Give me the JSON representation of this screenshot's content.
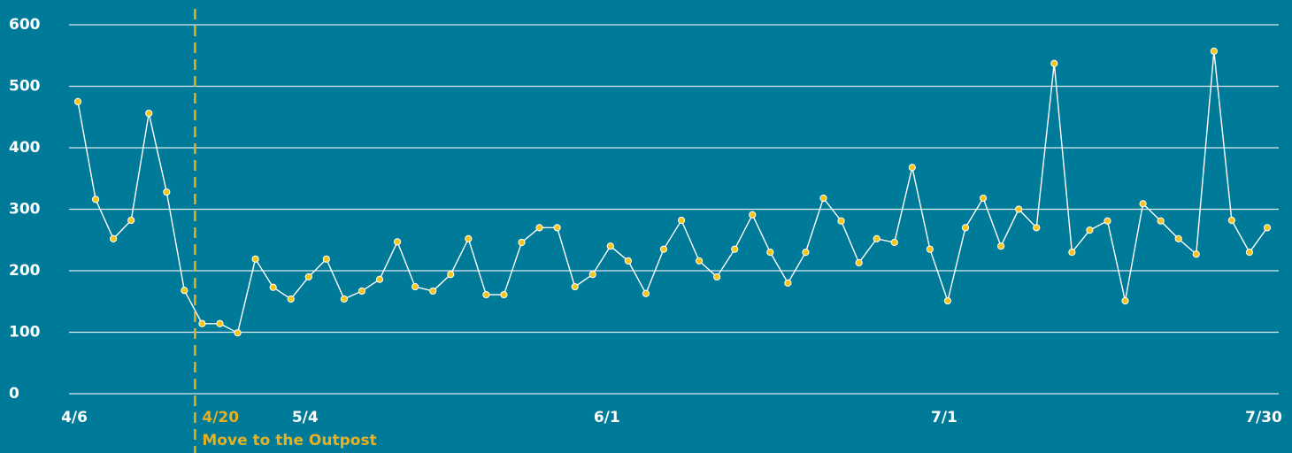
{
  "chart_data": {
    "type": "line",
    "categories": [
      "4/6",
      null,
      null,
      null,
      null,
      null,
      null,
      null,
      null,
      null,
      null,
      null,
      null,
      "5/4",
      null,
      null,
      null,
      null,
      null,
      null,
      null,
      null,
      null,
      null,
      null,
      null,
      null,
      null,
      null,
      null,
      "6/1",
      null,
      null,
      null,
      null,
      null,
      null,
      null,
      null,
      null,
      null,
      null,
      null,
      null,
      null,
      null,
      null,
      null,
      null,
      "7/1",
      null,
      null,
      null,
      null,
      null,
      null,
      null,
      null,
      null,
      null,
      null,
      null,
      null,
      null,
      null,
      null,
      null,
      "7/30"
    ],
    "series": [
      {
        "color": "#f5c518",
        "values": [
          475,
          316,
          252,
          282,
          456,
          328,
          168,
          114,
          114,
          99,
          219,
          173,
          154,
          190,
          219,
          154,
          167,
          186,
          247,
          174,
          167,
          194,
          252,
          161,
          161,
          246,
          270,
          270,
          174,
          194,
          240,
          216,
          163,
          235,
          282,
          216,
          190,
          235,
          291,
          230,
          180,
          230,
          318,
          281,
          213,
          252,
          246,
          368,
          235,
          151,
          270,
          318,
          240,
          300,
          270,
          537,
          230,
          266,
          281,
          151,
          309,
          281,
          252,
          227,
          557,
          282,
          230,
          270
        ]
      }
    ],
    "ylim": [
      0,
      600
    ],
    "yticks": [
      0,
      100,
      200,
      300,
      400,
      500,
      600
    ],
    "grid": true,
    "annotation": {
      "label": "4/20",
      "text": "Move to the Outpost",
      "color": "#e8b020"
    }
  }
}
